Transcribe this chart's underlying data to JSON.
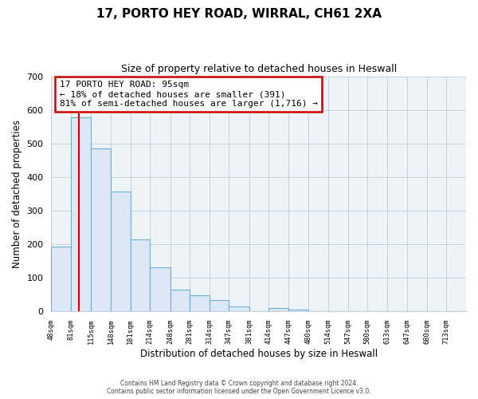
{
  "title": "17, PORTO HEY ROAD, WIRRAL, CH61 2XA",
  "subtitle": "Size of property relative to detached houses in Heswall",
  "xlabel": "Distribution of detached houses by size in Heswall",
  "ylabel": "Number of detached properties",
  "bin_labels": [
    "48sqm",
    "81sqm",
    "115sqm",
    "148sqm",
    "181sqm",
    "214sqm",
    "248sqm",
    "281sqm",
    "314sqm",
    "347sqm",
    "381sqm",
    "414sqm",
    "447sqm",
    "480sqm",
    "514sqm",
    "547sqm",
    "580sqm",
    "613sqm",
    "647sqm",
    "680sqm",
    "713sqm"
  ],
  "bar_heights": [
    193,
    578,
    484,
    356,
    215,
    130,
    65,
    47,
    33,
    15,
    0,
    9,
    6,
    0,
    0,
    0,
    0,
    0,
    0,
    0,
    0
  ],
  "bar_fill_color": "#dce8f5",
  "bar_edge_color": "#6baed6",
  "property_line_x": 95,
  "bin_edges": [
    48,
    81,
    115,
    148,
    181,
    214,
    248,
    281,
    314,
    347,
    381,
    414,
    447,
    480,
    514,
    547,
    580,
    613,
    647,
    680,
    713,
    746
  ],
  "annotation_box_text": "17 PORTO HEY ROAD: 95sqm\n← 18% of detached houses are smaller (391)\n81% of semi-detached houses are larger (1,716) →",
  "annotation_box_color": "#ffffff",
  "annotation_box_edge_color": "#cc0000",
  "property_line_color": "#cc0000",
  "ylim": [
    0,
    700
  ],
  "yticks": [
    0,
    100,
    200,
    300,
    400,
    500,
    600,
    700
  ],
  "footer_line1": "Contains HM Land Registry data © Crown copyright and database right 2024.",
  "footer_line2": "Contains public sector information licensed under the Open Government Licence v3.0.",
  "background_color": "#ffffff",
  "plot_bg_color": "#eef3f8",
  "grid_color": "#c8d0d8"
}
